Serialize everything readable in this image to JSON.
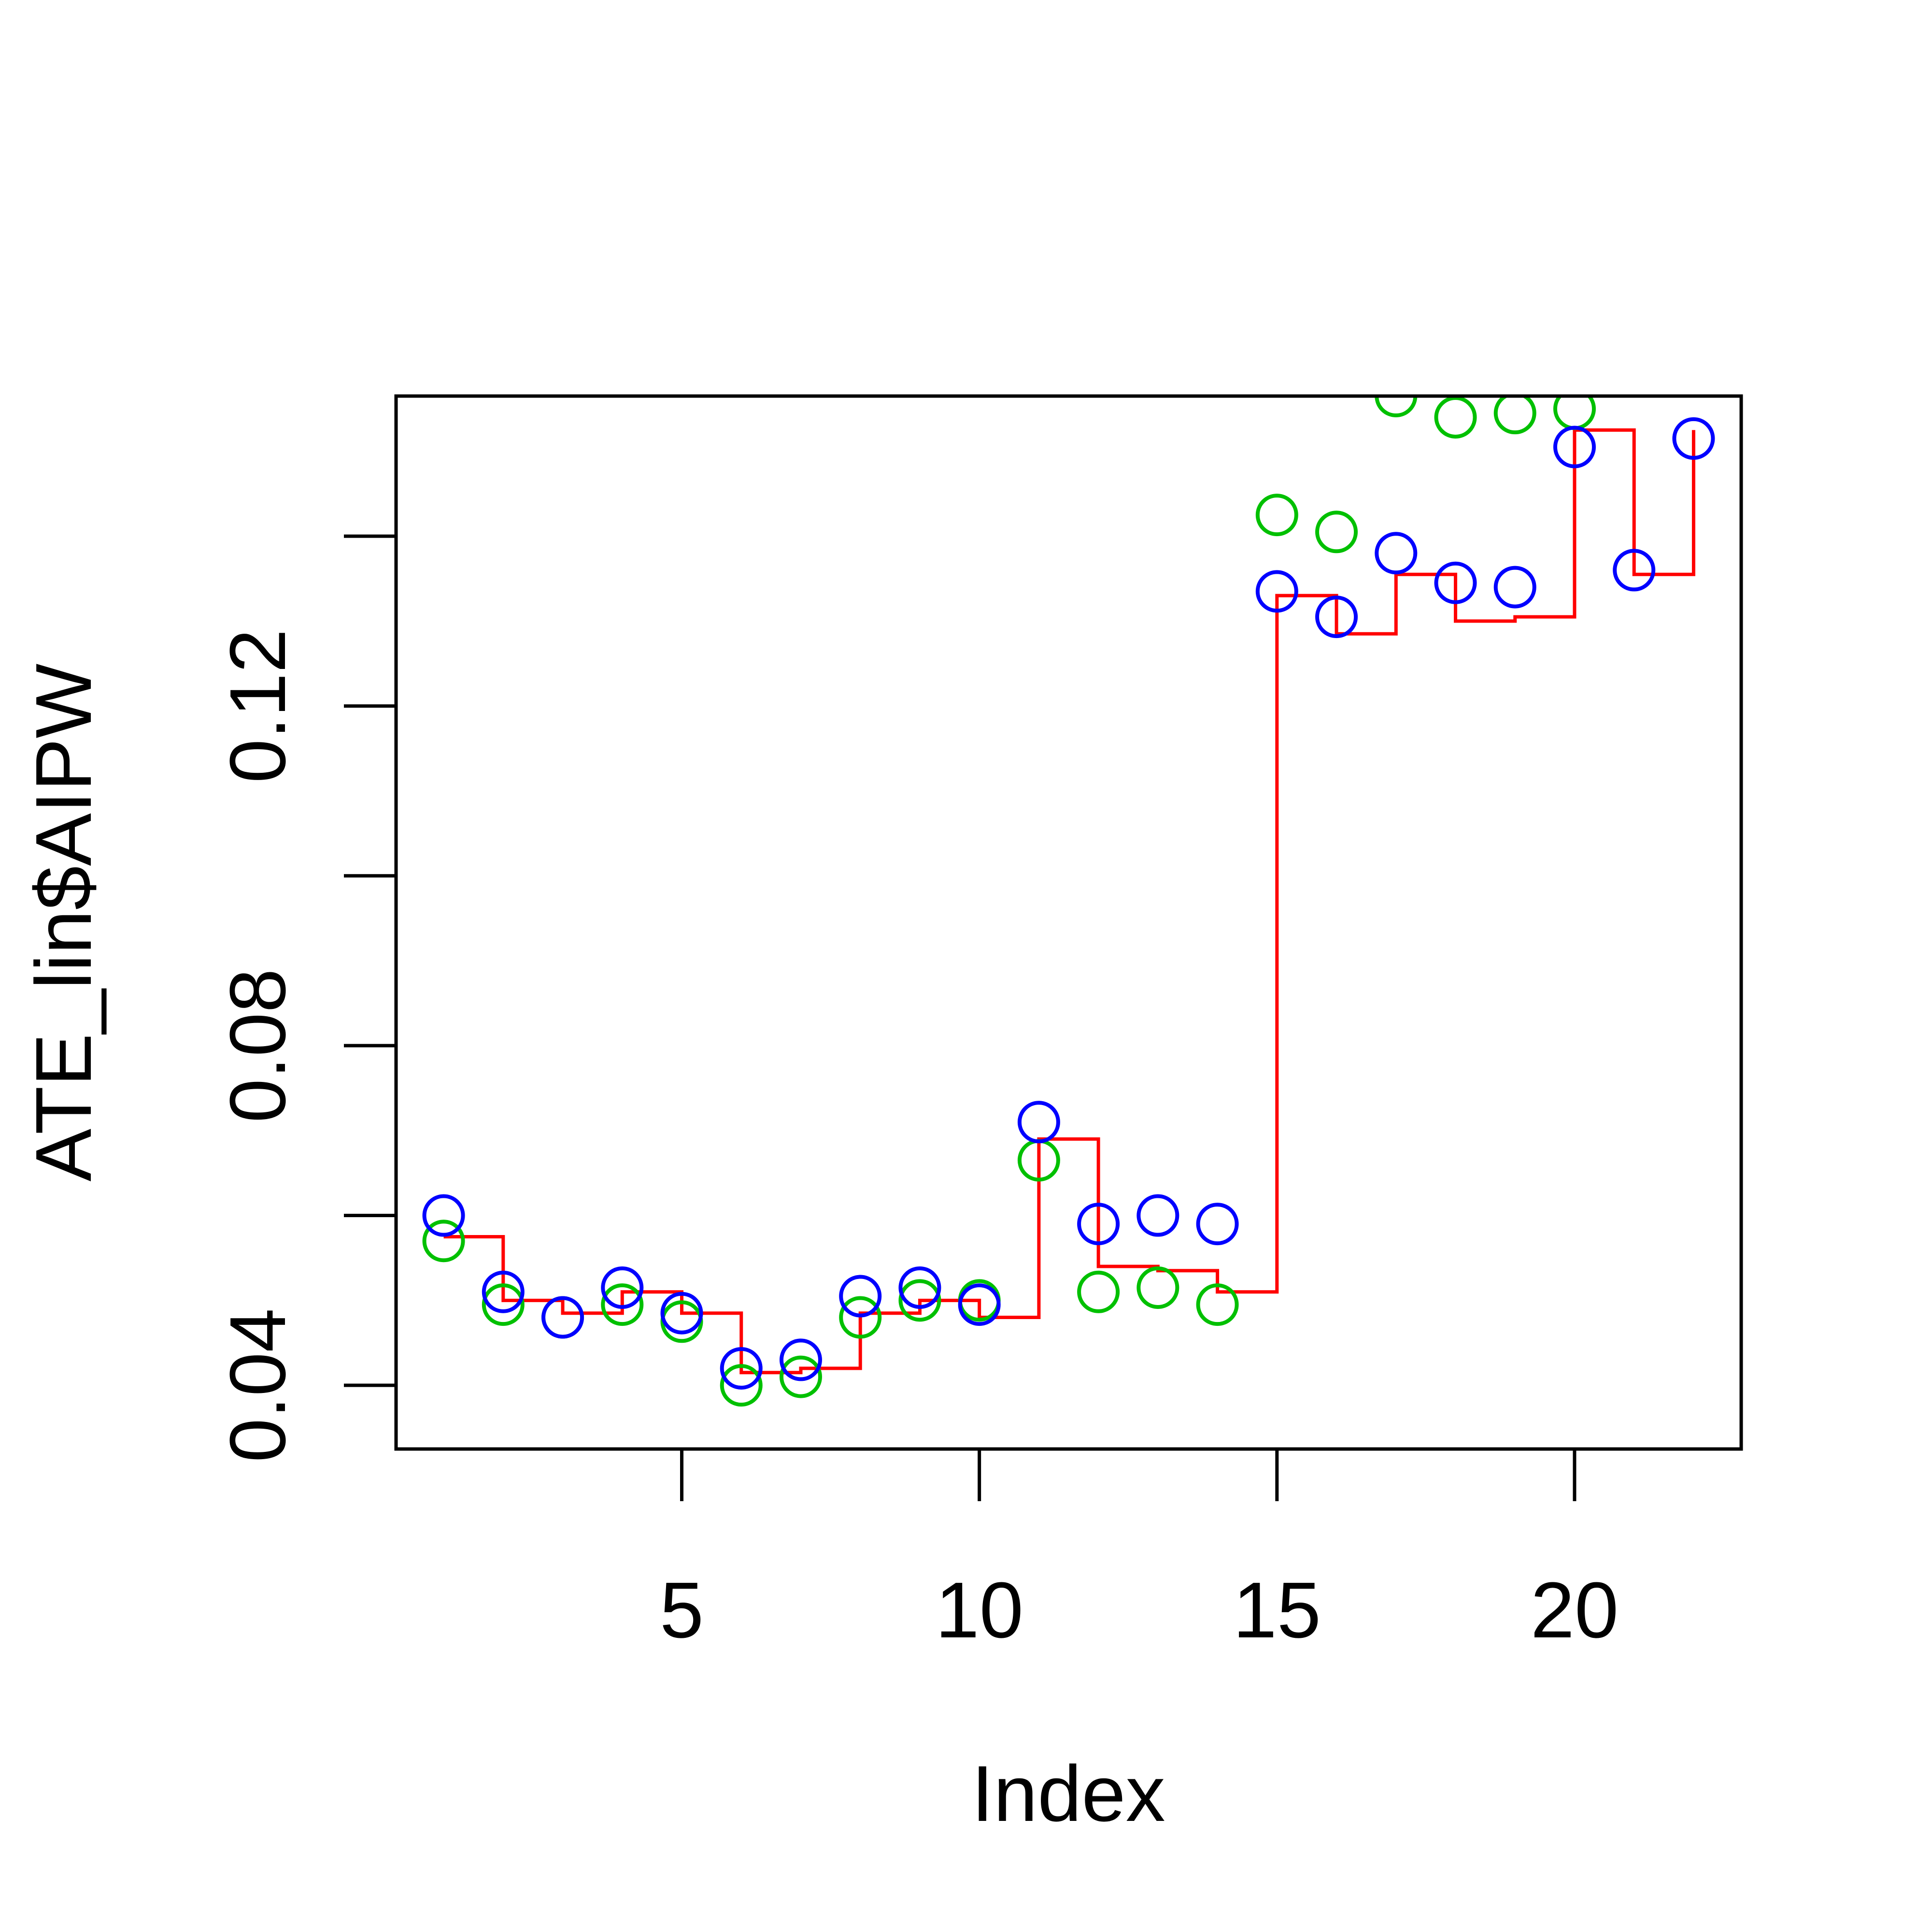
{
  "chart_data": {
    "type": "scatter",
    "title": "",
    "xlabel": "Index",
    "ylabel": "ATE_lin$AIPW",
    "xlim": [
      0.2,
      22.8
    ],
    "ylim": [
      0.0325,
      0.1565
    ],
    "x_ticks": [
      5,
      10,
      15,
      20
    ],
    "x_tick_labels": [
      "5",
      "10",
      "15",
      "20"
    ],
    "y_ticks": [
      0.04,
      0.06,
      0.08,
      0.1,
      0.12,
      0.14
    ],
    "y_tick_labels": [
      "0.04",
      "",
      "0.08",
      "",
      "0.12",
      ""
    ],
    "grid": false,
    "legend": "none",
    "x": [
      1,
      2,
      3,
      4,
      5,
      6,
      7,
      8,
      9,
      10,
      11,
      12,
      13,
      14,
      15,
      16,
      17,
      18,
      19,
      20,
      21,
      22
    ],
    "series": [
      {
        "style": "step",
        "color": "#ff0000",
        "values": [
          0.0575,
          0.05,
          0.0485,
          0.051,
          0.0485,
          0.0415,
          0.042,
          0.0485,
          0.05,
          0.048,
          0.069,
          0.054,
          0.0535,
          0.051,
          0.133,
          0.1285,
          0.1355,
          0.13,
          0.1305,
          0.1525,
          0.1355,
          0.1525
        ]
      },
      {
        "style": "points",
        "color": "#00c000",
        "values": [
          0.057,
          0.0495,
          0.048,
          0.0495,
          0.0475,
          0.04,
          0.041,
          0.048,
          0.05,
          0.05,
          0.0665,
          0.051,
          0.0515,
          0.0495,
          0.1425,
          0.1405,
          0.1565,
          0.154,
          0.1545,
          0.155,
          null,
          null
        ]
      },
      {
        "style": "points",
        "color": "#0000ff",
        "values": [
          0.06,
          0.051,
          0.048,
          0.0515,
          0.0485,
          0.042,
          0.043,
          0.0505,
          0.0515,
          0.0495,
          0.071,
          0.059,
          0.06,
          0.059,
          0.1335,
          0.1305,
          0.138,
          0.1345,
          0.134,
          0.1505,
          0.136,
          0.1515
        ]
      }
    ]
  }
}
